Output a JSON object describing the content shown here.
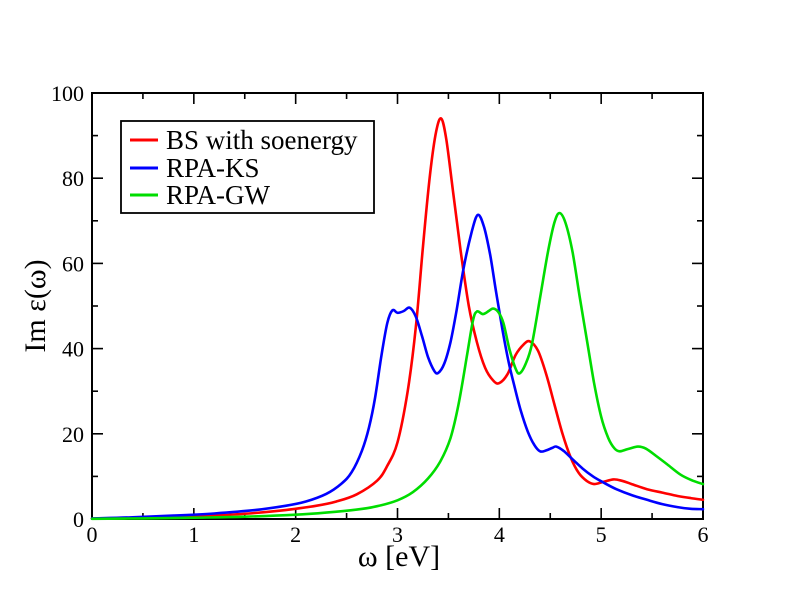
{
  "figure": {
    "background_color": "#ffffff",
    "frame_color": "#000000"
  },
  "chart_data": {
    "type": "line",
    "title": "",
    "xlabel": "ω [eV]",
    "ylabel": "Im ε(ω)",
    "xlim": [
      0,
      6
    ],
    "ylim": [
      0,
      100
    ],
    "x_major_ticks": [
      0,
      1,
      2,
      3,
      4,
      5,
      6
    ],
    "x_minor_step": 0.5,
    "y_major_ticks": [
      0,
      20,
      40,
      60,
      80,
      100
    ],
    "y_minor_step": 10,
    "grid": false,
    "legend_position": "top-left",
    "series": [
      {
        "name": "BS with soenergy",
        "color": "#ff0000",
        "points": [
          [
            0,
            0.1
          ],
          [
            0.4,
            0.2
          ],
          [
            0.8,
            0.4
          ],
          [
            1.2,
            0.8
          ],
          [
            1.6,
            1.4
          ],
          [
            1.9,
            2.1
          ],
          [
            2.2,
            3.1
          ],
          [
            2.4,
            4.1
          ],
          [
            2.6,
            5.8
          ],
          [
            2.8,
            9.0
          ],
          [
            2.9,
            12.5
          ],
          [
            3.0,
            18.0
          ],
          [
            3.1,
            30.0
          ],
          [
            3.18,
            45.0
          ],
          [
            3.25,
            64.0
          ],
          [
            3.32,
            81.0
          ],
          [
            3.38,
            91.0
          ],
          [
            3.43,
            94.0
          ],
          [
            3.48,
            89.0
          ],
          [
            3.55,
            76.0
          ],
          [
            3.62,
            63.0
          ],
          [
            3.7,
            50.0
          ],
          [
            3.78,
            41.5
          ],
          [
            3.86,
            35.5
          ],
          [
            3.94,
            32.5
          ],
          [
            4.0,
            31.9
          ],
          [
            4.08,
            34.0
          ],
          [
            4.16,
            38.5
          ],
          [
            4.24,
            41.0
          ],
          [
            4.3,
            41.7
          ],
          [
            4.38,
            39.5
          ],
          [
            4.46,
            34.0
          ],
          [
            4.54,
            27.0
          ],
          [
            4.62,
            20.0
          ],
          [
            4.7,
            14.5
          ],
          [
            4.78,
            10.8
          ],
          [
            4.86,
            8.9
          ],
          [
            4.93,
            8.2
          ],
          [
            5.02,
            8.7
          ],
          [
            5.12,
            9.3
          ],
          [
            5.2,
            9.0
          ],
          [
            5.3,
            8.2
          ],
          [
            5.45,
            7.0
          ],
          [
            5.6,
            6.2
          ],
          [
            5.75,
            5.4
          ],
          [
            5.88,
            4.9
          ],
          [
            6,
            4.5
          ]
        ]
      },
      {
        "name": "RPA-KS",
        "color": "#0000ff",
        "points": [
          [
            0,
            0.15
          ],
          [
            0.4,
            0.4
          ],
          [
            0.8,
            0.8
          ],
          [
            1.2,
            1.3
          ],
          [
            1.6,
            2.1
          ],
          [
            1.9,
            3.1
          ],
          [
            2.1,
            4.1
          ],
          [
            2.3,
            5.9
          ],
          [
            2.45,
            8.3
          ],
          [
            2.55,
            11.0
          ],
          [
            2.65,
            16.0
          ],
          [
            2.72,
            21.5
          ],
          [
            2.78,
            28.5
          ],
          [
            2.84,
            38.0
          ],
          [
            2.9,
            46.0
          ],
          [
            2.95,
            49.0
          ],
          [
            3.0,
            48.4
          ],
          [
            3.06,
            48.8
          ],
          [
            3.12,
            49.6
          ],
          [
            3.18,
            47.5
          ],
          [
            3.24,
            43.0
          ],
          [
            3.3,
            38.0
          ],
          [
            3.36,
            34.8
          ],
          [
            3.4,
            34.3
          ],
          [
            3.46,
            36.5
          ],
          [
            3.52,
            41.5
          ],
          [
            3.58,
            49.0
          ],
          [
            3.65,
            59.0
          ],
          [
            3.73,
            67.5
          ],
          [
            3.79,
            71.4
          ],
          [
            3.85,
            68.5
          ],
          [
            3.91,
            62.0
          ],
          [
            3.97,
            53.0
          ],
          [
            4.03,
            44.5
          ],
          [
            4.09,
            37.0
          ],
          [
            4.15,
            31.0
          ],
          [
            4.21,
            25.5
          ],
          [
            4.28,
            20.5
          ],
          [
            4.34,
            17.5
          ],
          [
            4.4,
            15.9
          ],
          [
            4.46,
            16.1
          ],
          [
            4.52,
            16.7
          ],
          [
            4.56,
            17.0
          ],
          [
            4.63,
            16.0
          ],
          [
            4.72,
            14.0
          ],
          [
            4.82,
            11.8
          ],
          [
            4.92,
            10.0
          ],
          [
            5.02,
            8.6
          ],
          [
            5.15,
            7.0
          ],
          [
            5.3,
            5.6
          ],
          [
            5.45,
            4.5
          ],
          [
            5.6,
            3.5
          ],
          [
            5.75,
            2.8
          ],
          [
            5.88,
            2.4
          ],
          [
            6,
            2.3
          ]
        ]
      },
      {
        "name": "RPA-GW",
        "color": "#00dd00",
        "points": [
          [
            0,
            0.05
          ],
          [
            0.5,
            0.15
          ],
          [
            1.0,
            0.3
          ],
          [
            1.5,
            0.55
          ],
          [
            2.0,
            1.0
          ],
          [
            2.3,
            1.5
          ],
          [
            2.6,
            2.2
          ],
          [
            2.8,
            3.0
          ],
          [
            3.0,
            4.4
          ],
          [
            3.15,
            6.3
          ],
          [
            3.3,
            9.5
          ],
          [
            3.42,
            13.5
          ],
          [
            3.52,
            19.0
          ],
          [
            3.6,
            27.0
          ],
          [
            3.68,
            38.0
          ],
          [
            3.74,
            46.5
          ],
          [
            3.78,
            48.7
          ],
          [
            3.84,
            48.1
          ],
          [
            3.9,
            48.9
          ],
          [
            3.94,
            49.4
          ],
          [
            3.99,
            48.6
          ],
          [
            4.04,
            46.0
          ],
          [
            4.1,
            39.8
          ],
          [
            4.16,
            35.3
          ],
          [
            4.2,
            34.2
          ],
          [
            4.26,
            36.5
          ],
          [
            4.32,
            41.0
          ],
          [
            4.4,
            52.0
          ],
          [
            4.48,
            63.0
          ],
          [
            4.54,
            69.5
          ],
          [
            4.59,
            71.8
          ],
          [
            4.65,
            69.5
          ],
          [
            4.72,
            62.5
          ],
          [
            4.79,
            52.0
          ],
          [
            4.86,
            42.0
          ],
          [
            4.93,
            32.0
          ],
          [
            5.0,
            24.0
          ],
          [
            5.07,
            19.0
          ],
          [
            5.13,
            16.6
          ],
          [
            5.18,
            15.9
          ],
          [
            5.26,
            16.4
          ],
          [
            5.36,
            17.0
          ],
          [
            5.44,
            16.5
          ],
          [
            5.54,
            14.8
          ],
          [
            5.65,
            12.8
          ],
          [
            5.78,
            10.4
          ],
          [
            5.9,
            9.0
          ],
          [
            6,
            8.2
          ]
        ]
      }
    ]
  }
}
